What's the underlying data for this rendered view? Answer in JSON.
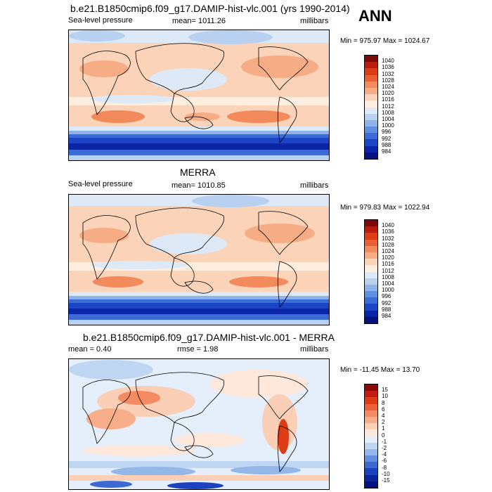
{
  "header": {
    "season": "ANN"
  },
  "panels": [
    {
      "title": "b.e21.B1850cmip6.f09_g17.DAMIP-hist-vlc.001 (yrs 1990-2014)",
      "variable": "Sea-level pressure",
      "stat": "mean= 1011.26",
      "units": "millibars",
      "minmax": "Min = 975.97 Max = 1024.67",
      "colorbar": {
        "labels": [
          "1040",
          "1036",
          "1032",
          "1028",
          "1024",
          "1020",
          "1016",
          "1012",
          "1008",
          "1004",
          "1000",
          "996",
          "992",
          "988",
          "984"
        ],
        "colors": [
          "#7a0a0a",
          "#b91b0c",
          "#dc3d12",
          "#ea5f2f",
          "#f28a5c",
          "#f6ad86",
          "#fbd3b9",
          "#fdeee0",
          "#dde9f7",
          "#b8d1f1",
          "#8eb3ea",
          "#5f8fe1",
          "#3a6bd6",
          "#1a45c4",
          "#0a25a6",
          "#06137a"
        ]
      }
    },
    {
      "title": "MERRA",
      "variable": "Sea-level pressure",
      "stat": "mean= 1010.85",
      "units": "millibars",
      "minmax": "Min = 979.83 Max = 1022.94",
      "colorbar": {
        "labels": [
          "1040",
          "1036",
          "1032",
          "1028",
          "1024",
          "1020",
          "1016",
          "1012",
          "1008",
          "1004",
          "1000",
          "996",
          "992",
          "988",
          "984"
        ],
        "colors": [
          "#7a0a0a",
          "#b91b0c",
          "#dc3d12",
          "#ea5f2f",
          "#f28a5c",
          "#f6ad86",
          "#fbd3b9",
          "#fdeee0",
          "#dde9f7",
          "#b8d1f1",
          "#8eb3ea",
          "#5f8fe1",
          "#3a6bd6",
          "#1a45c4",
          "#0a25a6",
          "#06137a"
        ]
      }
    },
    {
      "title": "b.e21.B1850cmip6.f09_g17.DAMIP-hist-vlc.001 - MERRA",
      "stat": "mean =   0.40",
      "rmse": "rmse =   1.98",
      "units": "millibars",
      "minmax": "Min = -11.45 Max =  13.70",
      "colorbar": {
        "labels": [
          "15",
          "10",
          "8",
          "6",
          "4",
          "2",
          "1",
          "0",
          "-1",
          "-2",
          "-4",
          "-6",
          "-8",
          "-10",
          "-15"
        ],
        "colors": [
          "#8b0a0a",
          "#c01f10",
          "#de3b17",
          "#ec6136",
          "#f48b62",
          "#f8ae8a",
          "#fbcfb5",
          "#fde8db",
          "#e4effb",
          "#bfd6f3",
          "#94b7ea",
          "#648fdf",
          "#3c68d2",
          "#1c43bf",
          "#0a239f",
          "#05117a"
        ]
      }
    }
  ]
}
